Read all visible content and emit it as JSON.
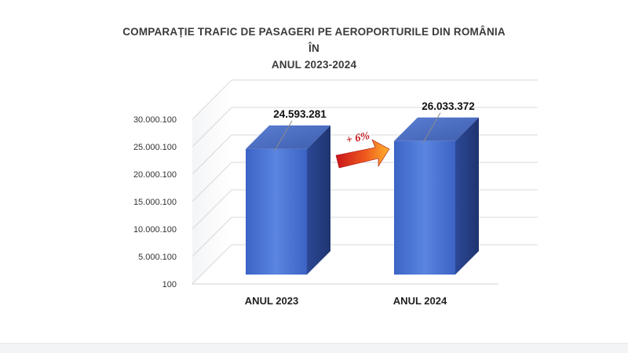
{
  "chart_data": {
    "type": "bar",
    "title_lines": [
      "COMPARAȚIE TRAFIC DE PASAGERI PE AEROPORTURILE DIN ROMÂNIA ÎN",
      "ANUL 2023-2024"
    ],
    "categories": [
      "ANUL 2023",
      "ANUL 2024"
    ],
    "values": [
      24593281,
      26033372
    ],
    "value_labels": [
      "24.593.281",
      "26.033.372"
    ],
    "yticks": [
      100,
      5000100,
      10000100,
      15000100,
      20000100,
      25000100,
      30000100
    ],
    "ytick_labels": [
      "100",
      "5.000.100",
      "10.000.100",
      "15.000.100",
      "20.000.100",
      "25.000.100",
      "30.000.100"
    ],
    "ylim": [
      100,
      30000100
    ],
    "grid": true,
    "legend": false,
    "style": "3d",
    "annotation": "+ 6%",
    "bar_color": "#3f6fd1"
  }
}
